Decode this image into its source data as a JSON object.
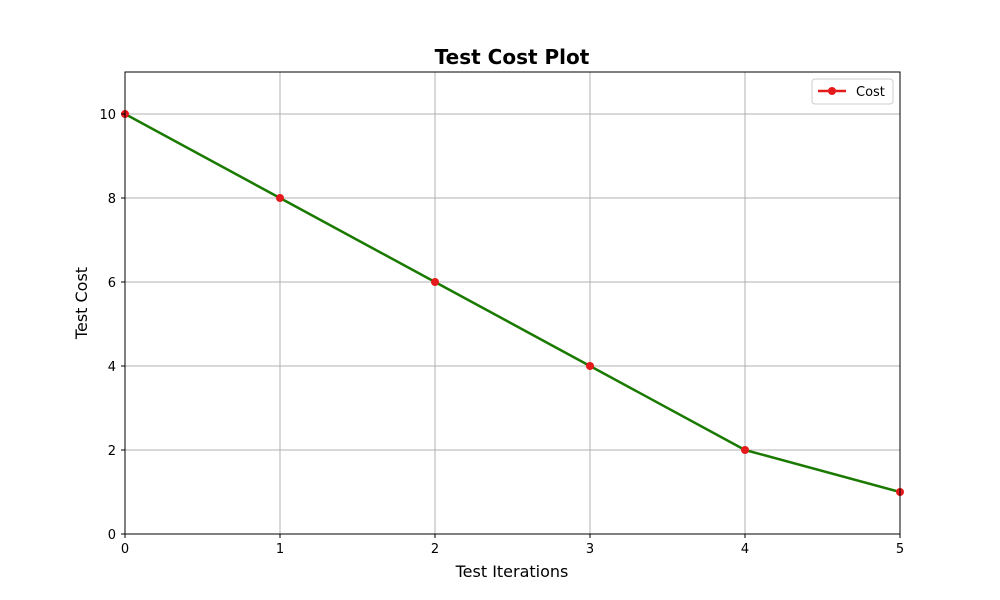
{
  "chart_data": {
    "type": "line",
    "title": "Test Cost Plot",
    "xlabel": "Test Iterations",
    "ylabel": "Test Cost",
    "xlim": [
      0,
      5
    ],
    "ylim": [
      0,
      11
    ],
    "xticks": [
      0,
      1,
      2,
      3,
      4,
      5
    ],
    "yticks": [
      0,
      2,
      4,
      6,
      8,
      10
    ],
    "grid": true,
    "legend_position": "top-right",
    "series": [
      {
        "name": "Cost",
        "x": [
          0,
          1,
          2,
          3,
          4,
          5
        ],
        "y": [
          10,
          8,
          6,
          4,
          2,
          1
        ],
        "line_color": "#1a7a00",
        "marker_color": "#e41a1c",
        "legend_color": "#e41a1c",
        "marker": "circle"
      }
    ]
  }
}
